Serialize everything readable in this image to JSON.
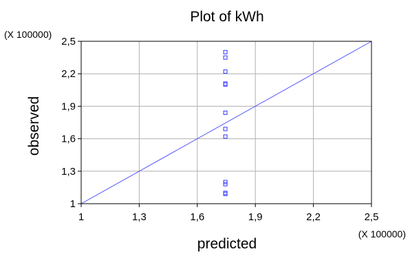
{
  "chart_data": {
    "type": "scatter",
    "title": "Plot of kWh",
    "xlabel": "predicted",
    "ylabel": "observed",
    "x_scale_label": "(X 100000)",
    "y_scale_label": "(X 100000)",
    "xlim": [
      1,
      2.5
    ],
    "ylim": [
      1,
      2.5
    ],
    "x_ticks": [
      "1",
      "1,3",
      "1,6",
      "1,9",
      "2,2",
      "2,5"
    ],
    "y_ticks": [
      "1",
      "1,3",
      "1,6",
      "1,9",
      "2,2",
      "2,5"
    ],
    "grid": true,
    "series": [
      {
        "marker": "square",
        "points": [
          {
            "x": 1.745,
            "y": 2.4
          },
          {
            "x": 1.745,
            "y": 2.35
          },
          {
            "x": 1.745,
            "y": 2.22
          },
          {
            "x": 1.745,
            "y": 2.11
          },
          {
            "x": 1.745,
            "y": 2.1
          },
          {
            "x": 1.745,
            "y": 1.84
          },
          {
            "x": 1.745,
            "y": 1.69
          },
          {
            "x": 1.745,
            "y": 1.62
          },
          {
            "x": 1.745,
            "y": 1.2
          },
          {
            "x": 1.745,
            "y": 1.18
          },
          {
            "x": 1.745,
            "y": 1.1
          },
          {
            "x": 1.745,
            "y": 1.09
          }
        ]
      }
    ],
    "reference_line": {
      "from": [
        1,
        1
      ],
      "to": [
        2.5,
        2.5
      ]
    },
    "colors": {
      "marker": "#3333ff",
      "line": "#5555ff",
      "grid": "#b0b0b0",
      "frame": "#000000"
    }
  }
}
